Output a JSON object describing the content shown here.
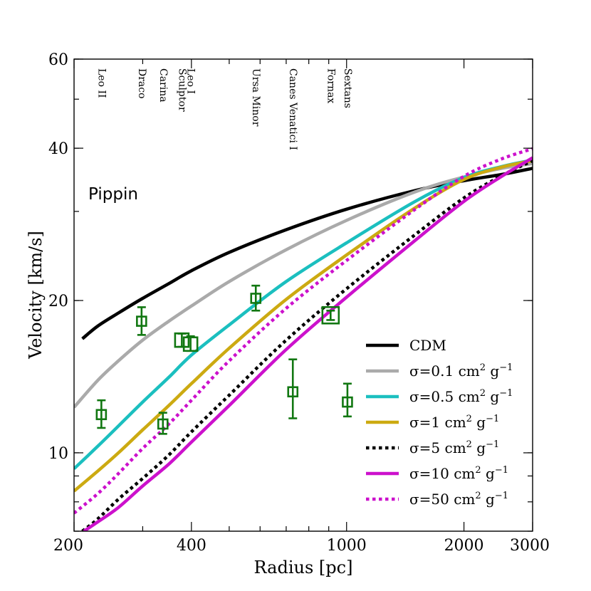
{
  "chart_data": {
    "type": "line",
    "title": "",
    "xlabel": "Radius [pc]",
    "ylabel": "Velocity [km/s]",
    "xscale": "log",
    "yscale": "log",
    "xlim": [
      200,
      3000
    ],
    "ylim": [
      7,
      60
    ],
    "xticks": [
      {
        "value": 200,
        "label": "200"
      },
      {
        "value": 400,
        "label": "400"
      },
      {
        "value": 1000,
        "label": "1000"
      },
      {
        "value": 2000,
        "label": "2000"
      },
      {
        "value": 3000,
        "label": "3000"
      }
    ],
    "yticks": [
      {
        "value": 10,
        "label": "10"
      },
      {
        "value": 20,
        "label": "20"
      },
      {
        "value": 40,
        "label": "40"
      },
      {
        "value": 60,
        "label": "60"
      }
    ],
    "annotation": "Pippin",
    "galaxy_labels": [
      {
        "name": "Leo II",
        "radius": 235
      },
      {
        "name": "Draco",
        "radius": 298
      },
      {
        "name": "Carina",
        "radius": 338
      },
      {
        "name": "Sculptor",
        "radius": 378
      },
      {
        "name": "Leo I",
        "radius": 398
      },
      {
        "name": "Ursa Minor",
        "radius": 585
      },
      {
        "name": "Canes Venatici I",
        "radius": 728
      },
      {
        "name": "Fornax",
        "radius": 910
      },
      {
        "name": "Sextans",
        "radius": 1005
      }
    ],
    "series": [
      {
        "name": "CDM",
        "legend": {
          "pre": "CDM"
        },
        "color": "#000000",
        "style": "solid",
        "width": 4.5,
        "x": [
          210,
          230,
          260,
          300,
          350,
          400,
          500,
          700,
          1000,
          1500,
          2000,
          2500,
          3000
        ],
        "y": [
          16.8,
          17.8,
          18.9,
          20.2,
          21.6,
          22.9,
          24.9,
          27.6,
          30.3,
          33.0,
          34.5,
          35.5,
          36.5
        ]
      },
      {
        "name": "σ=0.1 cm² g⁻¹",
        "legend": {
          "pre": "σ=0.1 cm",
          "sup1": "2",
          "mid": " g",
          "sup2": "−1"
        },
        "color": "#aaaaaa",
        "style": "solid",
        "width": 4.5,
        "x": [
          200,
          230,
          260,
          300,
          350,
          400,
          500,
          700,
          1000,
          1500,
          2000,
          2500,
          3000
        ],
        "y": [
          12.3,
          13.9,
          15.2,
          16.7,
          18.2,
          19.5,
          21.8,
          25.2,
          28.8,
          32.8,
          35.1,
          36.5,
          37.3
        ]
      },
      {
        "name": "σ=0.5 cm² g⁻¹",
        "legend": {
          "pre": "σ=0.5 cm",
          "sup1": "2",
          "mid": " g",
          "sup2": "−1"
        },
        "color": "#1bbfbf",
        "style": "solid",
        "width": 4.5,
        "x": [
          200,
          230,
          260,
          300,
          350,
          400,
          500,
          700,
          1000,
          1500,
          2000,
          2500,
          3000
        ],
        "y": [
          9.3,
          10.3,
          11.3,
          12.6,
          14.1,
          15.6,
          17.9,
          21.8,
          26.0,
          31.4,
          35.0,
          36.8,
          37.9
        ]
      },
      {
        "name": "σ=1 cm² g⁻¹",
        "legend": {
          "pre": "σ=1 cm",
          "sup1": "2",
          "mid": " g",
          "sup2": "−1"
        },
        "color": "#ccaa11",
        "style": "solid",
        "width": 4.5,
        "x": [
          200,
          230,
          260,
          300,
          350,
          400,
          500,
          700,
          1000,
          1500,
          2000,
          2500,
          3000
        ],
        "y": [
          8.4,
          9.2,
          10.0,
          11.1,
          12.4,
          13.7,
          16.1,
          20.1,
          24.6,
          30.5,
          34.7,
          36.7,
          37.8
        ]
      },
      {
        "name": "σ=5 cm² g⁻¹",
        "legend": {
          "pre": "σ=5 cm",
          "sup1": "2",
          "mid": " g",
          "sup2": "−1"
        },
        "color": "#000000",
        "style": "dotted",
        "width": 4.5,
        "x": [
          210,
          230,
          260,
          300,
          350,
          400,
          500,
          700,
          1000,
          1500,
          2000,
          2500,
          3000
        ],
        "y": [
          7.0,
          7.4,
          8.1,
          8.9,
          9.9,
          11.0,
          13.0,
          16.7,
          21.1,
          27.0,
          31.9,
          35.3,
          37.8
        ]
      },
      {
        "name": "σ=10 cm² g⁻¹",
        "legend": {
          "pre": "σ=10 cm",
          "sup1": "2",
          "mid": " g",
          "sup2": "−1"
        },
        "color": "#cc11cc",
        "style": "solid",
        "width": 4.5,
        "x": [
          212,
          230,
          260,
          300,
          350,
          400,
          500,
          700,
          1000,
          1500,
          2000,
          2500,
          3000
        ],
        "y": [
          7.0,
          7.3,
          7.8,
          8.6,
          9.5,
          10.5,
          12.4,
          16.0,
          20.3,
          26.3,
          31.4,
          35.2,
          38.3
        ]
      },
      {
        "name": "σ=50 cm² g⁻¹",
        "legend": {
          "pre": "σ=50 cm",
          "sup1": "2",
          "mid": " g",
          "sup2": "−1"
        },
        "color": "#cc11cc",
        "style": "dotted",
        "width": 4.5,
        "x": [
          200,
          230,
          260,
          300,
          350,
          400,
          500,
          700,
          1000,
          1500,
          2000,
          2500,
          3000
        ],
        "y": [
          7.6,
          8.3,
          9.1,
          10.2,
          11.4,
          12.7,
          15.2,
          19.3,
          24.0,
          30.3,
          35.2,
          38.1,
          39.9
        ]
      }
    ],
    "data_points": [
      {
        "galaxy": "Leo II",
        "x": 235,
        "y": 11.9,
        "yerr_low": 0.7,
        "yerr_high": 0.8,
        "size": "small"
      },
      {
        "galaxy": "Draco",
        "x": 298,
        "y": 18.2,
        "yerr_low": 1.1,
        "yerr_high": 1.2,
        "size": "small"
      },
      {
        "galaxy": "Carina",
        "x": 338,
        "y": 11.4,
        "yerr_low": 0.5,
        "yerr_high": 0.6,
        "size": "small"
      },
      {
        "galaxy": "Sculptor",
        "x": 378,
        "y": 16.7,
        "yerr_low": 0.5,
        "yerr_high": 0.5,
        "size": "medium"
      },
      {
        "galaxy": "Leo I",
        "x": 398,
        "y": 16.4,
        "yerr_low": 0.5,
        "yerr_high": 0.6,
        "size": "medium"
      },
      {
        "galaxy": "Ursa Minor",
        "x": 585,
        "y": 20.2,
        "yerr_low": 1.1,
        "yerr_high": 1.2,
        "size": "small"
      },
      {
        "galaxy": "Canes Venatici I",
        "x": 728,
        "y": 13.2,
        "yerr_low": 1.5,
        "yerr_high": 2.1,
        "size": "small"
      },
      {
        "galaxy": "Fornax",
        "x": 910,
        "y": 18.7,
        "yerr_low": 0.4,
        "yerr_high": 0.4,
        "size": "large"
      },
      {
        "galaxy": "Sextans",
        "x": 1005,
        "y": 12.6,
        "yerr_low": 0.8,
        "yerr_high": 1.1,
        "size": "small"
      }
    ],
    "point_color": "#117711",
    "legend_position": "lower-right"
  }
}
